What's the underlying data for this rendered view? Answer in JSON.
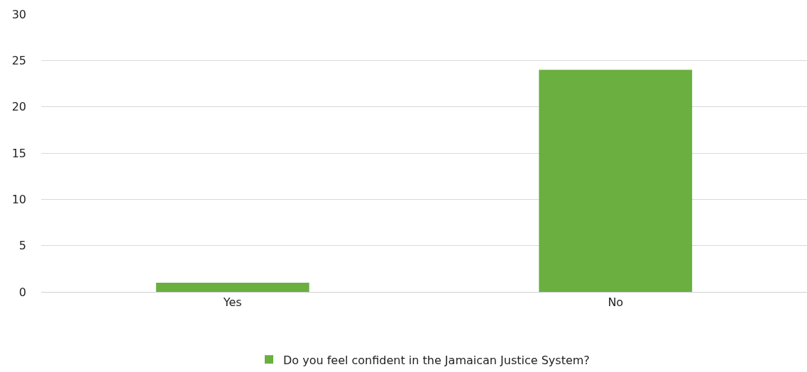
{
  "chart_data": {
    "type": "bar",
    "categories": [
      "Yes",
      "No"
    ],
    "series": [
      {
        "name": "Do you feel confident in the Jamaican Justice System?",
        "color": "#6aaf3f",
        "values": [
          1,
          24
        ]
      }
    ],
    "ylim": [
      0,
      30
    ],
    "yticks": [
      0,
      5,
      10,
      15,
      20,
      25,
      30
    ],
    "grid": "y",
    "legend": "bottom"
  }
}
